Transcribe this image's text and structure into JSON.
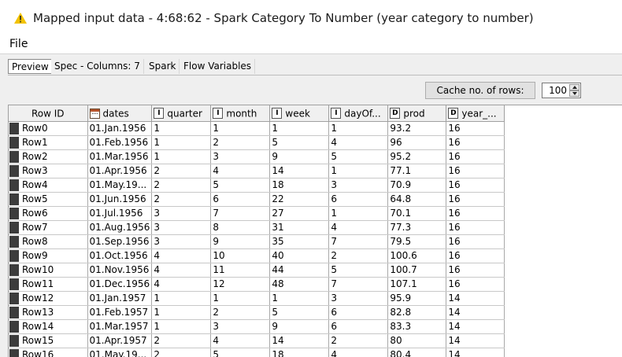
{
  "window": {
    "title": "Mapped input data - 4:68:62 - Spark Category To Number (year category to number)"
  },
  "menu": {
    "file": "File"
  },
  "tabs": [
    "Preview",
    "Spec - Columns: 7",
    "Spark",
    "Flow Variables"
  ],
  "active_tab": "Preview",
  "cache": {
    "label": "Cache no. of rows:",
    "value": "100"
  },
  "table": {
    "columns": [
      {
        "name": "Row ID",
        "type": ""
      },
      {
        "name": "dates",
        "type": "date-icon"
      },
      {
        "name": "quarter",
        "type": "I"
      },
      {
        "name": "month",
        "type": "I"
      },
      {
        "name": "week",
        "type": "I"
      },
      {
        "name": "dayOf...",
        "type": "I"
      },
      {
        "name": "prod",
        "type": "D"
      },
      {
        "name": "year_...",
        "type": "D"
      }
    ],
    "rows": [
      [
        "Row0",
        "01.Jan.1956",
        "1",
        "1",
        "1",
        "1",
        "93.2",
        "16"
      ],
      [
        "Row1",
        "01.Feb.1956",
        "1",
        "2",
        "5",
        "4",
        "96",
        "16"
      ],
      [
        "Row2",
        "01.Mar.1956",
        "1",
        "3",
        "9",
        "5",
        "95.2",
        "16"
      ],
      [
        "Row3",
        "01.Apr.1956",
        "2",
        "4",
        "14",
        "1",
        "77.1",
        "16"
      ],
      [
        "Row4",
        "01.May.19...",
        "2",
        "5",
        "18",
        "3",
        "70.9",
        "16"
      ],
      [
        "Row5",
        "01.Jun.1956",
        "2",
        "6",
        "22",
        "6",
        "64.8",
        "16"
      ],
      [
        "Row6",
        "01.Jul.1956",
        "3",
        "7",
        "27",
        "1",
        "70.1",
        "16"
      ],
      [
        "Row7",
        "01.Aug.1956",
        "3",
        "8",
        "31",
        "4",
        "77.3",
        "16"
      ],
      [
        "Row8",
        "01.Sep.1956",
        "3",
        "9",
        "35",
        "7",
        "79.5",
        "16"
      ],
      [
        "Row9",
        "01.Oct.1956",
        "4",
        "10",
        "40",
        "2",
        "100.6",
        "16"
      ],
      [
        "Row10",
        "01.Nov.1956",
        "4",
        "11",
        "44",
        "5",
        "100.7",
        "16"
      ],
      [
        "Row11",
        "01.Dec.1956",
        "4",
        "12",
        "48",
        "7",
        "107.1",
        "16"
      ],
      [
        "Row12",
        "01.Jan.1957",
        "1",
        "1",
        "1",
        "3",
        "95.9",
        "14"
      ],
      [
        "Row13",
        "01.Feb.1957",
        "1",
        "2",
        "5",
        "6",
        "82.8",
        "14"
      ],
      [
        "Row14",
        "01.Mar.1957",
        "1",
        "3",
        "9",
        "6",
        "83.3",
        "14"
      ],
      [
        "Row15",
        "01.Apr.1957",
        "2",
        "4",
        "14",
        "2",
        "80",
        "14"
      ],
      [
        "Row16",
        "01.May.19...",
        "2",
        "5",
        "18",
        "4",
        "80.4",
        "14"
      ]
    ]
  }
}
